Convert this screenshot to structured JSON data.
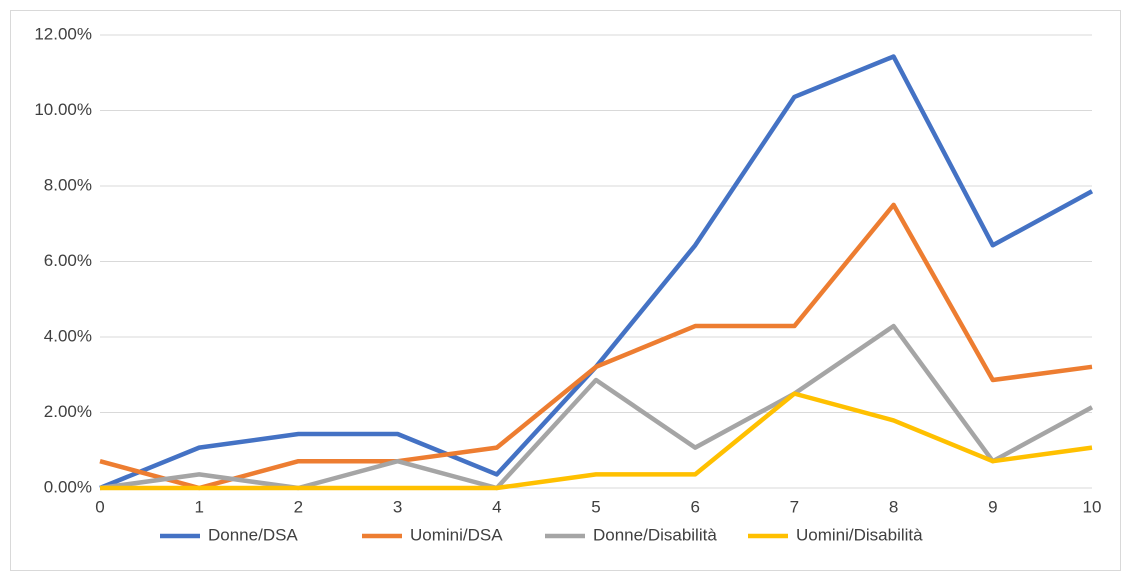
{
  "chart_data": {
    "type": "line",
    "x": [
      0,
      1,
      2,
      3,
      4,
      5,
      6,
      7,
      8,
      9,
      10
    ],
    "xlim": [
      0,
      10
    ],
    "xticks": [
      0,
      1,
      2,
      3,
      4,
      5,
      6,
      7,
      8,
      9,
      10
    ],
    "ylim": [
      0,
      12
    ],
    "yticks": [
      {
        "value": 0,
        "label": "0.00%"
      },
      {
        "value": 2,
        "label": "2.00%"
      },
      {
        "value": 4,
        "label": "4.00%"
      },
      {
        "value": 6,
        "label": "6.00%"
      },
      {
        "value": 8,
        "label": "8.00%"
      },
      {
        "value": 10,
        "label": "10.00%"
      },
      {
        "value": 12,
        "label": "12.00%"
      }
    ],
    "grid": true,
    "legend": "bottom",
    "series": [
      {
        "name": "Donne/DSA",
        "color": "#4472c4",
        "values": [
          0,
          1.07,
          1.43,
          1.43,
          0.36,
          3.21,
          6.43,
          10.36,
          11.43,
          6.43,
          7.86
        ]
      },
      {
        "name": "Uomini/DSA",
        "color": "#ed7d31",
        "values": [
          0.71,
          0,
          0.71,
          0.71,
          1.07,
          3.21,
          4.29,
          4.29,
          7.5,
          2.86,
          3.21
        ]
      },
      {
        "name": "Donne/Disabilità",
        "color": "#a5a5a5",
        "values": [
          0,
          0.36,
          0,
          0.71,
          0,
          2.86,
          1.07,
          2.5,
          4.29,
          0.71,
          2.14
        ]
      },
      {
        "name": "Uomini/Disabilità",
        "color": "#ffc000",
        "values": [
          0,
          0,
          0,
          0,
          0,
          0.36,
          0.36,
          2.5,
          1.79,
          0.71,
          1.07
        ]
      }
    ]
  }
}
